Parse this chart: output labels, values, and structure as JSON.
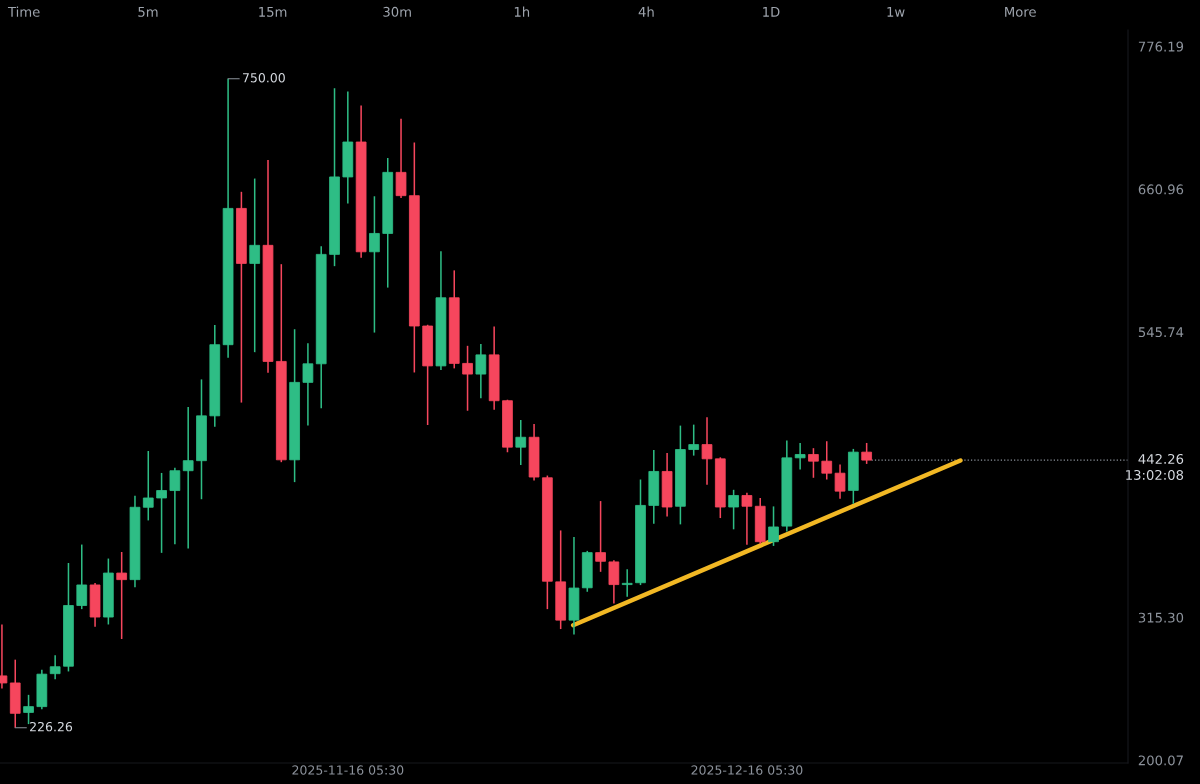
{
  "chart_data": {
    "type": "candlestick",
    "series": [
      {
        "x": [
          "2025-10-21T05:30",
          "2025-10-22T05:30",
          "2025-10-23T05:30",
          "2025-10-24T05:30",
          "2025-10-25T05:30",
          "2025-10-26T05:30",
          "2025-10-27T05:30",
          "2025-10-28T05:30",
          "2025-10-29T05:30",
          "2025-10-30T05:30",
          "2025-10-31T05:30",
          "2025-11-01T05:30",
          "2025-11-02T05:30",
          "2025-11-03T05:30",
          "2025-11-04T05:30",
          "2025-11-05T05:30",
          "2025-11-06T05:30",
          "2025-11-07T05:30",
          "2025-11-08T05:30",
          "2025-11-09T05:30",
          "2025-11-10T05:30",
          "2025-11-11T05:30",
          "2025-11-12T05:30",
          "2025-11-13T05:30",
          "2025-11-14T05:30",
          "2025-11-15T05:30",
          "2025-11-16T05:30",
          "2025-11-17T05:30",
          "2025-11-18T05:30",
          "2025-11-19T05:30",
          "2025-11-20T05:30",
          "2025-11-21T05:30",
          "2025-11-22T05:30",
          "2025-11-23T05:30",
          "2025-11-24T05:30",
          "2025-11-25T05:30",
          "2025-11-26T05:30",
          "2025-11-27T05:30",
          "2025-11-28T05:30",
          "2025-11-29T05:30",
          "2025-11-30T05:30",
          "2025-12-01T05:30",
          "2025-12-02T05:30",
          "2025-12-03T05:30",
          "2025-12-04T05:30",
          "2025-12-05T05:30",
          "2025-12-06T05:30",
          "2025-12-07T05:30",
          "2025-12-08T05:30",
          "2025-12-09T05:30",
          "2025-12-10T05:30",
          "2025-12-11T05:30",
          "2025-12-12T05:30",
          "2025-12-13T05:30",
          "2025-12-14T05:30",
          "2025-12-15T05:30",
          "2025-12-16T05:30",
          "2025-12-17T05:30",
          "2025-12-18T05:30",
          "2025-12-19T05:30",
          "2025-12-20T05:30",
          "2025-12-21T05:30",
          "2025-12-22T05:30",
          "2025-12-23T05:30",
          "2025-12-24T05:30",
          "2025-12-25T05:30"
        ],
        "ohlc": [
          [
            268.1,
            309.6,
            258.0,
            262.4
          ],
          [
            262.4,
            281.2,
            226.26,
            237.9
          ],
          [
            238.6,
            252.8,
            229.2,
            243.3
          ],
          [
            243.3,
            273.1,
            241.1,
            269.5
          ],
          [
            269.9,
            284.8,
            265.3,
            275.5
          ],
          [
            275.9,
            359.2,
            271.7,
            324.9
          ],
          [
            324.9,
            374.1,
            322.0,
            341.5
          ],
          [
            341.5,
            343.0,
            307.8,
            315.6
          ],
          [
            315.6,
            362.8,
            309.6,
            351.1
          ],
          [
            351.1,
            368.1,
            297.9,
            345.8
          ],
          [
            345.8,
            413.5,
            339.7,
            404.2
          ],
          [
            404.2,
            449.6,
            393.6,
            411.7
          ],
          [
            411.7,
            431.9,
            367.4,
            417.7
          ],
          [
            417.7,
            436.0,
            374.4,
            433.7
          ],
          [
            433.7,
            485.1,
            370.9,
            441.8
          ],
          [
            441.8,
            507.4,
            410.7,
            478.0
          ],
          [
            478.0,
            551.4,
            469.2,
            535.4
          ],
          [
            535.4,
            750.0,
            524.8,
            645.4
          ],
          [
            645.4,
            658.8,
            488.7,
            601.0
          ],
          [
            601.0,
            669.5,
            529.4,
            615.6
          ],
          [
            615.6,
            684.4,
            512.7,
            521.9
          ],
          [
            521.9,
            600.4,
            440.6,
            442.5
          ],
          [
            442.5,
            547.9,
            424.5,
            505.0
          ],
          [
            505.0,
            536.6,
            470.1,
            520.0
          ],
          [
            520.0,
            614.9,
            484.1,
            608.3
          ],
          [
            608.3,
            742.4,
            598.8,
            670.8
          ],
          [
            670.8,
            739.7,
            649.3,
            699.0
          ],
          [
            699.0,
            728.4,
            605.6,
            610.4
          ],
          [
            610.4,
            655.2,
            545.2,
            625.2
          ],
          [
            625.2,
            686.1,
            581.5,
            674.5
          ],
          [
            674.5,
            717.7,
            653.9,
            655.7
          ],
          [
            655.7,
            698.6,
            513.0,
            550.5
          ],
          [
            550.5,
            551.5,
            470.6,
            518.3
          ],
          [
            518.3,
            610.9,
            514.9,
            573.3
          ],
          [
            573.3,
            595.4,
            516.3,
            520.3
          ],
          [
            520.3,
            534.5,
            482.1,
            511.7
          ],
          [
            511.7,
            536.0,
            492.1,
            527.2
          ],
          [
            527.2,
            550.1,
            482.9,
            490.2
          ],
          [
            490.2,
            491.0,
            448.6,
            452.7
          ],
          [
            452.7,
            474.6,
            438.4,
            460.7
          ],
          [
            460.7,
            471.4,
            425.8,
            428.6
          ],
          [
            428.0,
            429.8,
            322.0,
            344.5
          ],
          [
            344.0,
            385.5,
            305.9,
            313.1
          ],
          [
            313.1,
            380.2,
            301.6,
            339.0
          ],
          [
            339.2,
            369.0,
            336.0,
            367.6
          ],
          [
            367.6,
            409.2,
            352.1,
            360.6
          ],
          [
            360.1,
            361.4,
            326.5,
            341.8
          ],
          [
            341.8,
            354.2,
            331.9,
            342.8
          ],
          [
            343.3,
            426.6,
            341.4,
            405.7
          ],
          [
            405.7,
            450.5,
            390.9,
            433.1
          ],
          [
            433.1,
            448.1,
            396.8,
            404.4
          ],
          [
            405.0,
            470.1,
            390.4,
            450.8
          ],
          [
            450.8,
            470.9,
            445.9,
            454.8
          ],
          [
            454.8,
            476.8,
            422.3,
            443.3
          ],
          [
            443.3,
            444.5,
            395.5,
            404.4
          ],
          [
            404.4,
            418.3,
            386.4,
            413.7
          ],
          [
            413.7,
            416.0,
            374.0,
            405.0
          ],
          [
            405.0,
            411.6,
            374.8,
            376.4
          ],
          [
            376.4,
            404.9,
            373.0,
            388.3
          ],
          [
            389.0,
            458.0,
            384.7,
            444.1
          ],
          [
            444.1,
            456.1,
            434.6,
            446.8
          ],
          [
            446.8,
            451.9,
            428.0,
            441.4
          ],
          [
            441.4,
            457.5,
            426.6,
            431.7
          ],
          [
            431.7,
            438.7,
            411.1,
            417.2
          ],
          [
            417.8,
            451.3,
            407.0,
            448.7
          ],
          [
            448.7,
            456.1,
            439.2,
            442.26
          ]
        ],
        "colors": [
          "#f6465d",
          "#f6465d",
          "#2ebd85",
          "#2ebd85",
          "#2ebd85",
          "#2ebd85",
          "#2ebd85",
          "#f6465d",
          "#2ebd85",
          "#f6465d",
          "#2ebd85",
          "#2ebd85",
          "#2ebd85",
          "#2ebd85",
          "#2ebd85",
          "#2ebd85",
          "#2ebd85",
          "#2ebd85",
          "#f6465d",
          "#2ebd85",
          "#f6465d",
          "#f6465d",
          "#2ebd85",
          "#2ebd85",
          "#2ebd85",
          "#2ebd85",
          "#2ebd85",
          "#f6465d",
          "#2ebd85",
          "#2ebd85",
          "#f6465d",
          "#f6465d",
          "#f6465d",
          "#2ebd85",
          "#f6465d",
          "#f6465d",
          "#2ebd85",
          "#f6465d",
          "#f6465d",
          "#2ebd85",
          "#f6465d",
          "#f6465d",
          "#f6465d",
          "#2ebd85",
          "#2ebd85",
          "#f6465d",
          "#f6465d",
          "#2ebd85",
          "#2ebd85",
          "#2ebd85",
          "#f6465d",
          "#2ebd85",
          "#2ebd85",
          "#f6465d",
          "#f6465d",
          "#2ebd85",
          "#f6465d",
          "#f6465d",
          "#2ebd85",
          "#2ebd85",
          "#2ebd85",
          "#f6465d",
          "#f6465d",
          "#f6465d",
          "#2ebd85",
          "#f6465d"
        ]
      },
      {
        "type": "line",
        "x": [
          "2025-12-03T04:00",
          "2026-01-01T06:40"
        ],
        "values": [
          309,
          442
        ],
        "color": "#f2b824"
      }
    ],
    "xlim": [
      "2025-10-21T02:00",
      "2026-01-13T21:00"
    ],
    "xticks": [
      {
        "value": "2025-11-16T05:30",
        "label": "2025-11-16 05:30"
      },
      {
        "value": "2025-12-16T05:30",
        "label": "2025-12-16 05:30"
      }
    ],
    "ylim": [
      197.8,
      789.4
    ],
    "yticks": [
      776.19,
      660.96,
      545.74,
      {
        "value": 315.3,
        "label": "315.30"
      },
      200.07
    ],
    "ref_lines": [
      {
        "axis": "y",
        "value": 442.26,
        "label": "442.26",
        "color": "#8c929b",
        "line_style": "dotted"
      }
    ],
    "annotations": [
      {
        "text": "750.00",
        "x": "2025-11-07T05:30",
        "y": 750.0
      },
      {
        "text": "226.26",
        "x": "2025-10-22T05:30",
        "y": 226.26
      },
      "13:02:08",
      "Time",
      "5m",
      "15m",
      "30m",
      "1h",
      "4h",
      "1D",
      "1w",
      "More"
    ]
  }
}
